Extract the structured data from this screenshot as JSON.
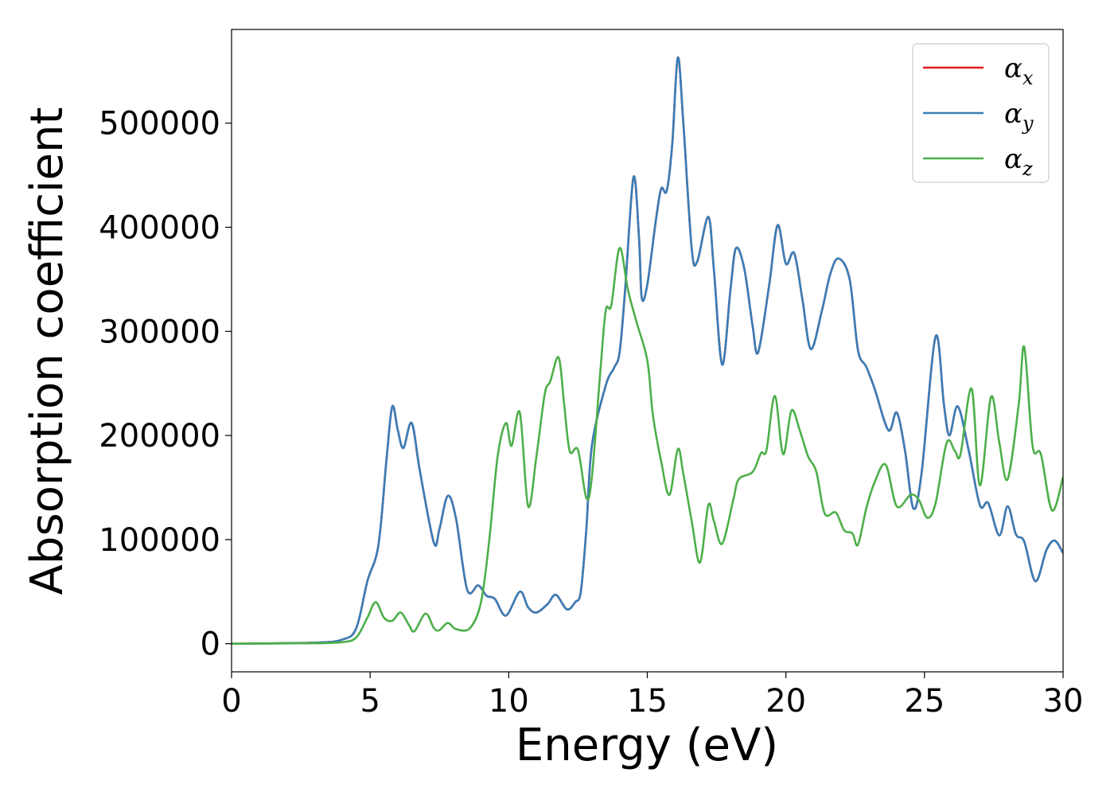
{
  "chart_data": {
    "type": "line",
    "title": "",
    "xlabel": "Energy (eV)",
    "ylabel": "Absorption coefficient",
    "xlim": [
      0,
      30
    ],
    "ylim": [
      -27000,
      590000
    ],
    "x_ticks": [
      0,
      5,
      10,
      15,
      20,
      25,
      30
    ],
    "y_ticks": [
      0,
      100000,
      200000,
      300000,
      400000,
      500000
    ],
    "x_tick_labels": [
      "0",
      "5",
      "10",
      "15",
      "20",
      "25",
      "30"
    ],
    "y_tick_labels": [
      "0",
      "100000",
      "200000",
      "300000",
      "400000",
      "500000"
    ],
    "grid": false,
    "legend_position": "top-right",
    "colors": {
      "alpha_x": "#e41a1c",
      "alpha_y": "#377eb8",
      "alpha_z": "#4daf4a"
    },
    "series": [
      {
        "name": "αx",
        "legend_base": "α",
        "legend_sub": "x",
        "color": "#e41a1c",
        "points": [
          [
            0,
            0
          ],
          [
            3,
            1000
          ],
          [
            4,
            4000
          ],
          [
            4.5,
            15000
          ],
          [
            4.9,
            60000
          ],
          [
            5.3,
            95000
          ],
          [
            5.6,
            180000
          ],
          [
            5.8,
            228000
          ],
          [
            6.0,
            205000
          ],
          [
            6.2,
            188000
          ],
          [
            6.5,
            212000
          ],
          [
            6.8,
            165000
          ],
          [
            7.3,
            97000
          ],
          [
            7.5,
            110000
          ],
          [
            7.8,
            142000
          ],
          [
            8.1,
            120000
          ],
          [
            8.5,
            52000
          ],
          [
            8.9,
            56000
          ],
          [
            9.2,
            46000
          ],
          [
            9.5,
            43000
          ],
          [
            9.9,
            27000
          ],
          [
            10.4,
            50000
          ],
          [
            10.7,
            35000
          ],
          [
            11.0,
            30000
          ],
          [
            11.4,
            38000
          ],
          [
            11.7,
            47000
          ],
          [
            12.1,
            33000
          ],
          [
            12.4,
            40000
          ],
          [
            12.6,
            50000
          ],
          [
            12.8,
            110000
          ],
          [
            13.0,
            190000
          ],
          [
            13.5,
            248000
          ],
          [
            13.8,
            265000
          ],
          [
            14.0,
            280000
          ],
          [
            14.2,
            340000
          ],
          [
            14.5,
            448000
          ],
          [
            14.7,
            390000
          ],
          [
            14.8,
            332000
          ],
          [
            15.0,
            345000
          ],
          [
            15.3,
            405000
          ],
          [
            15.5,
            437000
          ],
          [
            15.7,
            435000
          ],
          [
            15.9,
            480000
          ],
          [
            16.1,
            563000
          ],
          [
            16.3,
            500000
          ],
          [
            16.6,
            380000
          ],
          [
            16.8,
            367000
          ],
          [
            17.2,
            410000
          ],
          [
            17.4,
            360000
          ],
          [
            17.7,
            268000
          ],
          [
            18.0,
            340000
          ],
          [
            18.2,
            380000
          ],
          [
            18.5,
            360000
          ],
          [
            18.8,
            305000
          ],
          [
            19.0,
            280000
          ],
          [
            19.4,
            345000
          ],
          [
            19.7,
            402000
          ],
          [
            20.0,
            365000
          ],
          [
            20.3,
            375000
          ],
          [
            20.6,
            330000
          ],
          [
            20.9,
            283000
          ],
          [
            21.3,
            320000
          ],
          [
            21.6,
            355000
          ],
          [
            21.9,
            370000
          ],
          [
            22.3,
            350000
          ],
          [
            22.6,
            282000
          ],
          [
            22.9,
            266000
          ],
          [
            23.2,
            245000
          ],
          [
            23.7,
            205000
          ],
          [
            24.0,
            222000
          ],
          [
            24.3,
            185000
          ],
          [
            24.6,
            130000
          ],
          [
            24.9,
            165000
          ],
          [
            25.4,
            295000
          ],
          [
            25.7,
            230000
          ],
          [
            25.9,
            200000
          ],
          [
            26.2,
            228000
          ],
          [
            26.6,
            185000
          ],
          [
            27.0,
            133000
          ],
          [
            27.3,
            135000
          ],
          [
            27.7,
            104000
          ],
          [
            28.0,
            132000
          ],
          [
            28.3,
            105000
          ],
          [
            28.6,
            98000
          ],
          [
            29.0,
            60000
          ],
          [
            29.4,
            90000
          ],
          [
            29.7,
            99000
          ],
          [
            30.0,
            87000
          ]
        ]
      },
      {
        "name": "αy",
        "legend_base": "α",
        "legend_sub": "y",
        "color": "#377eb8",
        "points": [
          [
            0,
            0
          ],
          [
            3,
            1000
          ],
          [
            4,
            4000
          ],
          [
            4.5,
            15000
          ],
          [
            4.9,
            60000
          ],
          [
            5.3,
            95000
          ],
          [
            5.6,
            180000
          ],
          [
            5.8,
            228000
          ],
          [
            6.0,
            205000
          ],
          [
            6.2,
            188000
          ],
          [
            6.5,
            212000
          ],
          [
            6.8,
            165000
          ],
          [
            7.3,
            97000
          ],
          [
            7.5,
            110000
          ],
          [
            7.8,
            142000
          ],
          [
            8.1,
            120000
          ],
          [
            8.5,
            52000
          ],
          [
            8.9,
            56000
          ],
          [
            9.2,
            46000
          ],
          [
            9.5,
            43000
          ],
          [
            9.9,
            27000
          ],
          [
            10.4,
            50000
          ],
          [
            10.7,
            35000
          ],
          [
            11.0,
            30000
          ],
          [
            11.4,
            38000
          ],
          [
            11.7,
            47000
          ],
          [
            12.1,
            33000
          ],
          [
            12.4,
            40000
          ],
          [
            12.6,
            50000
          ],
          [
            12.8,
            110000
          ],
          [
            13.0,
            190000
          ],
          [
            13.5,
            248000
          ],
          [
            13.8,
            265000
          ],
          [
            14.0,
            280000
          ],
          [
            14.2,
            340000
          ],
          [
            14.5,
            448000
          ],
          [
            14.7,
            390000
          ],
          [
            14.8,
            332000
          ],
          [
            15.0,
            345000
          ],
          [
            15.3,
            405000
          ],
          [
            15.5,
            437000
          ],
          [
            15.7,
            435000
          ],
          [
            15.9,
            480000
          ],
          [
            16.1,
            563000
          ],
          [
            16.3,
            500000
          ],
          [
            16.6,
            380000
          ],
          [
            16.8,
            367000
          ],
          [
            17.2,
            410000
          ],
          [
            17.4,
            360000
          ],
          [
            17.7,
            268000
          ],
          [
            18.0,
            340000
          ],
          [
            18.2,
            380000
          ],
          [
            18.5,
            360000
          ],
          [
            18.8,
            305000
          ],
          [
            19.0,
            280000
          ],
          [
            19.4,
            345000
          ],
          [
            19.7,
            402000
          ],
          [
            20.0,
            365000
          ],
          [
            20.3,
            375000
          ],
          [
            20.6,
            330000
          ],
          [
            20.9,
            283000
          ],
          [
            21.3,
            320000
          ],
          [
            21.6,
            355000
          ],
          [
            21.9,
            370000
          ],
          [
            22.3,
            350000
          ],
          [
            22.6,
            282000
          ],
          [
            22.9,
            266000
          ],
          [
            23.2,
            245000
          ],
          [
            23.7,
            205000
          ],
          [
            24.0,
            222000
          ],
          [
            24.3,
            185000
          ],
          [
            24.6,
            130000
          ],
          [
            24.9,
            165000
          ],
          [
            25.4,
            295000
          ],
          [
            25.7,
            230000
          ],
          [
            25.9,
            200000
          ],
          [
            26.2,
            228000
          ],
          [
            26.6,
            185000
          ],
          [
            27.0,
            133000
          ],
          [
            27.3,
            135000
          ],
          [
            27.7,
            104000
          ],
          [
            28.0,
            132000
          ],
          [
            28.3,
            105000
          ],
          [
            28.6,
            98000
          ],
          [
            29.0,
            60000
          ],
          [
            29.4,
            90000
          ],
          [
            29.7,
            99000
          ],
          [
            30.0,
            87000
          ]
        ]
      },
      {
        "name": "αz",
        "legend_base": "α",
        "legend_sub": "z",
        "color": "#4daf4a",
        "points": [
          [
            0,
            0
          ],
          [
            3,
            500
          ],
          [
            4,
            1500
          ],
          [
            4.5,
            6000
          ],
          [
            4.9,
            25000
          ],
          [
            5.2,
            40000
          ],
          [
            5.5,
            25000
          ],
          [
            5.8,
            22000
          ],
          [
            6.1,
            30000
          ],
          [
            6.4,
            18000
          ],
          [
            6.6,
            12000
          ],
          [
            7.0,
            29000
          ],
          [
            7.3,
            15000
          ],
          [
            7.5,
            13000
          ],
          [
            7.8,
            20000
          ],
          [
            8.1,
            14000
          ],
          [
            8.6,
            15000
          ],
          [
            9.0,
            40000
          ],
          [
            9.3,
            100000
          ],
          [
            9.6,
            180000
          ],
          [
            9.9,
            212000
          ],
          [
            10.1,
            190000
          ],
          [
            10.4,
            222000
          ],
          [
            10.7,
            132000
          ],
          [
            11.0,
            180000
          ],
          [
            11.3,
            240000
          ],
          [
            11.5,
            252000
          ],
          [
            11.8,
            275000
          ],
          [
            12.0,
            230000
          ],
          [
            12.2,
            185000
          ],
          [
            12.5,
            186000
          ],
          [
            12.8,
            140000
          ],
          [
            13.0,
            160000
          ],
          [
            13.3,
            260000
          ],
          [
            13.5,
            320000
          ],
          [
            13.7,
            325000
          ],
          [
            14.0,
            380000
          ],
          [
            14.3,
            340000
          ],
          [
            14.6,
            310000
          ],
          [
            15.0,
            272000
          ],
          [
            15.2,
            220000
          ],
          [
            15.5,
            175000
          ],
          [
            15.8,
            143000
          ],
          [
            16.1,
            187000
          ],
          [
            16.3,
            163000
          ],
          [
            16.6,
            118000
          ],
          [
            16.9,
            78000
          ],
          [
            17.2,
            133000
          ],
          [
            17.4,
            118000
          ],
          [
            17.7,
            96000
          ],
          [
            18.1,
            138000
          ],
          [
            18.3,
            158000
          ],
          [
            18.8,
            165000
          ],
          [
            19.1,
            183000
          ],
          [
            19.3,
            186000
          ],
          [
            19.6,
            238000
          ],
          [
            19.9,
            182000
          ],
          [
            20.2,
            224000
          ],
          [
            20.5,
            205000
          ],
          [
            20.8,
            180000
          ],
          [
            21.1,
            165000
          ],
          [
            21.4,
            125000
          ],
          [
            21.8,
            126000
          ],
          [
            22.1,
            109000
          ],
          [
            22.4,
            106000
          ],
          [
            22.6,
            95000
          ],
          [
            22.9,
            130000
          ],
          [
            23.2,
            155000
          ],
          [
            23.6,
            172000
          ],
          [
            24.0,
            132000
          ],
          [
            24.5,
            143000
          ],
          [
            24.8,
            138000
          ],
          [
            25.1,
            121000
          ],
          [
            25.4,
            135000
          ],
          [
            25.8,
            193000
          ],
          [
            26.1,
            185000
          ],
          [
            26.3,
            182000
          ],
          [
            26.7,
            245000
          ],
          [
            27.0,
            152000
          ],
          [
            27.4,
            237000
          ],
          [
            27.7,
            193000
          ],
          [
            28.0,
            158000
          ],
          [
            28.4,
            230000
          ],
          [
            28.6,
            285000
          ],
          [
            28.9,
            190000
          ],
          [
            29.2,
            182000
          ],
          [
            29.6,
            128000
          ],
          [
            30.0,
            160000
          ]
        ]
      }
    ]
  }
}
